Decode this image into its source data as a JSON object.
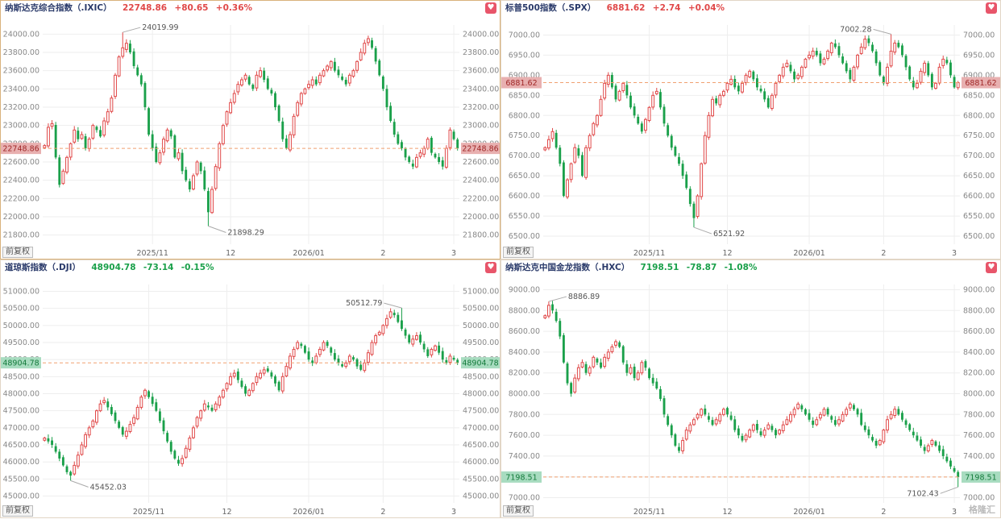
{
  "colors": {
    "up": "#e04848",
    "down": "#1aa04a",
    "ref_line": "#f0a070",
    "grid": "#eeeeee",
    "axis_text": "#888888"
  },
  "favorite_icon": "heart-icon",
  "restore_label": "前复权",
  "watermark": "格隆汇",
  "panels": [
    {
      "name": "纳斯达克综合指数（.IXIC）",
      "price": "22748.86",
      "change": "+80.65",
      "pct": "+0.36%",
      "direction": "up",
      "ref_label": "22748.86",
      "high_label": "24019.99",
      "low_label": "21898.29",
      "chart_data": {
        "type": "candlestick",
        "y_ticks": [
          24000,
          23800,
          23600,
          23400,
          23200,
          23000,
          22800,
          22600,
          22400,
          22200,
          22000,
          21800
        ],
        "y_tick_labels": [
          "24000.00",
          "23800.00",
          "23600.00",
          "23400.00",
          "23200.00",
          "23000.00",
          "22800.00",
          "22600.00",
          "22400.00",
          "22200.00",
          "22000.00",
          "21800.00"
        ],
        "ylim": [
          21700,
          24100
        ],
        "x_ticks": [
          {
            "label": "2025/11",
            "i": 29
          },
          {
            "label": "12",
            "i": 50
          },
          {
            "label": "2026/01",
            "i": 71
          },
          {
            "label": "2",
            "i": 91
          },
          {
            "label": "3",
            "i": 110
          }
        ],
        "n": 112,
        "ref_value": 22748.86,
        "high": {
          "i": 21,
          "value": 24019.99
        },
        "low": {
          "i": 44,
          "value": 21898.29
        },
        "closes": [
          22780,
          22980,
          23020,
          22650,
          22350,
          22500,
          22650,
          22800,
          22950,
          22850,
          22900,
          22750,
          22850,
          23000,
          22950,
          22880,
          23050,
          23150,
          23300,
          23550,
          23750,
          23850,
          23900,
          23800,
          23650,
          23550,
          23450,
          23200,
          22900,
          22750,
          22600,
          22700,
          22850,
          22950,
          22880,
          22650,
          22700,
          22500,
          22400,
          22300,
          22450,
          22600,
          22500,
          22300,
          22050,
          22300,
          22550,
          22800,
          23000,
          23150,
          23250,
          23350,
          23450,
          23500,
          23550,
          23450,
          23400,
          23550,
          23600,
          23500,
          23400,
          23350,
          23200,
          23050,
          22850,
          22750,
          22900,
          23100,
          23250,
          23350,
          23400,
          23450,
          23500,
          23450,
          23550,
          23600,
          23650,
          23700,
          23600,
          23550,
          23500,
          23450,
          23550,
          23600,
          23700,
          23800,
          23900,
          23950,
          23850,
          23700,
          23550,
          23400,
          23200,
          23050,
          22900,
          22800,
          22750,
          22650,
          22600,
          22550,
          22650,
          22700,
          22750,
          22850,
          22700,
          22650,
          22600,
          22550,
          22750,
          22950,
          22850,
          22748.86
        ]
      }
    },
    {
      "name": "标普500指数（.SPX）",
      "price": "6881.62",
      "change": "+2.74",
      "pct": "+0.04%",
      "direction": "up",
      "ref_label": "6881.62",
      "high_label": "7002.28",
      "low_label": "6521.92",
      "chart_data": {
        "type": "candlestick",
        "y_ticks": [
          7000,
          6950,
          6900,
          6850,
          6800,
          6750,
          6700,
          6650,
          6600,
          6550,
          6500
        ],
        "y_tick_labels": [
          "7000.00",
          "6950.00",
          "6900.00",
          "6850.00",
          "6800.00",
          "6750.00",
          "6700.00",
          "6650.00",
          "6600.00",
          "6550.00",
          "6500.00"
        ],
        "ylim": [
          6480,
          7025
        ],
        "x_ticks": [
          {
            "label": "2025/11",
            "i": 28
          },
          {
            "label": "12",
            "i": 49
          },
          {
            "label": "2026/01",
            "i": 71
          },
          {
            "label": "2",
            "i": 91
          },
          {
            "label": "3",
            "i": 110
          }
        ],
        "n": 112,
        "ref_value": 6881.62,
        "high": {
          "i": 93,
          "value": 7002.28
        },
        "low": {
          "i": 40,
          "value": 6521.92
        },
        "closes": [
          6720,
          6740,
          6760,
          6720,
          6680,
          6600,
          6640,
          6680,
          6720,
          6700,
          6650,
          6720,
          6750,
          6780,
          6800,
          6840,
          6880,
          6900,
          6870,
          6840,
          6860,
          6880,
          6850,
          6820,
          6800,
          6780,
          6760,
          6790,
          6820,
          6850,
          6860,
          6820,
          6780,
          6750,
          6720,
          6700,
          6680,
          6650,
          6620,
          6580,
          6545,
          6600,
          6680,
          6750,
          6800,
          6840,
          6830,
          6850,
          6860,
          6880,
          6890,
          6870,
          6860,
          6880,
          6900,
          6910,
          6890,
          6870,
          6860,
          6840,
          6820,
          6850,
          6880,
          6900,
          6920,
          6930,
          6910,
          6890,
          6900,
          6920,
          6940,
          6950,
          6960,
          6950,
          6930,
          6940,
          6960,
          6980,
          6970,
          6950,
          6930,
          6910,
          6890,
          6920,
          6950,
          6970,
          6990,
          6980,
          6960,
          6930,
          6900,
          6880,
          6920,
          6960,
          6980,
          6970,
          6950,
          6920,
          6890,
          6870,
          6880,
          6910,
          6930,
          6900,
          6870,
          6880,
          6920,
          6940,
          6930,
          6900,
          6870,
          6881.62
        ]
      }
    },
    {
      "name": "道琼斯指数（.DJI）",
      "price": "48904.78",
      "change": "-73.14",
      "pct": "-0.15%",
      "direction": "down",
      "ref_label": "48904.78",
      "high_label": "50512.79",
      "low_label": "45452.03",
      "chart_data": {
        "type": "candlestick",
        "y_ticks": [
          51000,
          50500,
          50000,
          49500,
          49000,
          48500,
          48000,
          47500,
          47000,
          46500,
          46000,
          45500,
          45000
        ],
        "y_tick_labels": [
          "51000.00",
          "50500.00",
          "50000.00",
          "49500.00",
          "49000.00",
          "48500.00",
          "48000.00",
          "47500.00",
          "47000.00",
          "46500.00",
          "46000.00",
          "45500.00",
          "45000.00"
        ],
        "ylim": [
          44800,
          51200
        ],
        "x_ticks": [
          {
            "label": "2025/11",
            "i": 28
          },
          {
            "label": "12",
            "i": 49
          },
          {
            "label": "2026/01",
            "i": 71
          },
          {
            "label": "2",
            "i": 91
          },
          {
            "label": "3",
            "i": 110
          }
        ],
        "n": 112,
        "ref_value": 48904.78,
        "high": {
          "i": 96,
          "value": 50512.79
        },
        "low": {
          "i": 7,
          "value": 45452.03
        },
        "closes": [
          46700,
          46600,
          46500,
          46300,
          46100,
          45900,
          45700,
          45600,
          45900,
          46200,
          46500,
          46800,
          47000,
          47200,
          47500,
          47700,
          47800,
          47600,
          47400,
          47200,
          47000,
          46800,
          46900,
          47100,
          47300,
          47600,
          47900,
          48100,
          47900,
          47700,
          47500,
          47200,
          46900,
          46600,
          46300,
          46100,
          45950,
          46100,
          46400,
          46700,
          47000,
          47300,
          47500,
          47700,
          47600,
          47500,
          47700,
          47900,
          48100,
          48300,
          48500,
          48600,
          48400,
          48200,
          48000,
          48100,
          48300,
          48500,
          48600,
          48700,
          48650,
          48500,
          48300,
          48100,
          48500,
          48800,
          49100,
          49300,
          49500,
          49400,
          49200,
          49000,
          48900,
          49100,
          49300,
          49500,
          49400,
          49200,
          49000,
          48900,
          48800,
          48900,
          49100,
          49000,
          48800,
          48700,
          48900,
          49200,
          49500,
          49700,
          49800,
          50000,
          50200,
          50400,
          50300,
          50100,
          49900,
          49700,
          49500,
          49600,
          49700,
          49500,
          49300,
          49100,
          49300,
          49400,
          49200,
          49000,
          48900,
          49100,
          49000,
          48904.78
        ]
      }
    },
    {
      "name": "纳斯达克中国金龙指数（.HXC）",
      "price": "7198.51",
      "change": "-78.87",
      "pct": "-1.08%",
      "direction": "down",
      "ref_label": "7198.51",
      "high_label": "8886.89",
      "low_label": "7102.43",
      "chart_data": {
        "type": "candlestick",
        "y_ticks": [
          9000,
          8800,
          8600,
          8400,
          8200,
          8000,
          7800,
          7600,
          7400,
          7200,
          7000
        ],
        "y_tick_labels": [
          "9000.00",
          "8800.00",
          "8600.00",
          "8400.00",
          "8200.00",
          "8000.00",
          "7800.00",
          "7600.00",
          "7400.00",
          "7200.00",
          "7000.00"
        ],
        "ylim": [
          6950,
          9050
        ],
        "x_ticks": [
          {
            "label": "2025/11",
            "i": 28
          },
          {
            "label": "12",
            "i": 49
          },
          {
            "label": "2026/01",
            "i": 71
          },
          {
            "label": "2",
            "i": 91
          },
          {
            "label": "3",
            "i": 110
          }
        ],
        "n": 112,
        "ref_value": 7198.51,
        "high": {
          "i": 1,
          "value": 8886.89
        },
        "low": {
          "i": 111,
          "value": 7102.43
        },
        "closes": [
          8750,
          8850,
          8800,
          8700,
          8550,
          8300,
          8100,
          8000,
          8150,
          8250,
          8300,
          8200,
          8250,
          8350,
          8300,
          8250,
          8350,
          8400,
          8450,
          8500,
          8450,
          8300,
          8200,
          8250,
          8150,
          8200,
          8300,
          8250,
          8150,
          8100,
          8050,
          7950,
          7800,
          7700,
          7600,
          7500,
          7450,
          7550,
          7650,
          7700,
          7750,
          7800,
          7850,
          7800,
          7750,
          7700,
          7750,
          7800,
          7850,
          7800,
          7750,
          7650,
          7600,
          7550,
          7600,
          7650,
          7700,
          7650,
          7600,
          7650,
          7700,
          7650,
          7600,
          7650,
          7700,
          7750,
          7800,
          7850,
          7900,
          7850,
          7800,
          7750,
          7700,
          7750,
          7800,
          7850,
          7800,
          7750,
          7700,
          7750,
          7800,
          7850,
          7900,
          7850,
          7800,
          7700,
          7650,
          7600,
          7550,
          7500,
          7550,
          7650,
          7750,
          7800,
          7850,
          7800,
          7750,
          7700,
          7650,
          7600,
          7550,
          7500,
          7450,
          7500,
          7550,
          7500,
          7450,
          7400,
          7350,
          7300,
          7250,
          7198.51
        ]
      }
    }
  ]
}
